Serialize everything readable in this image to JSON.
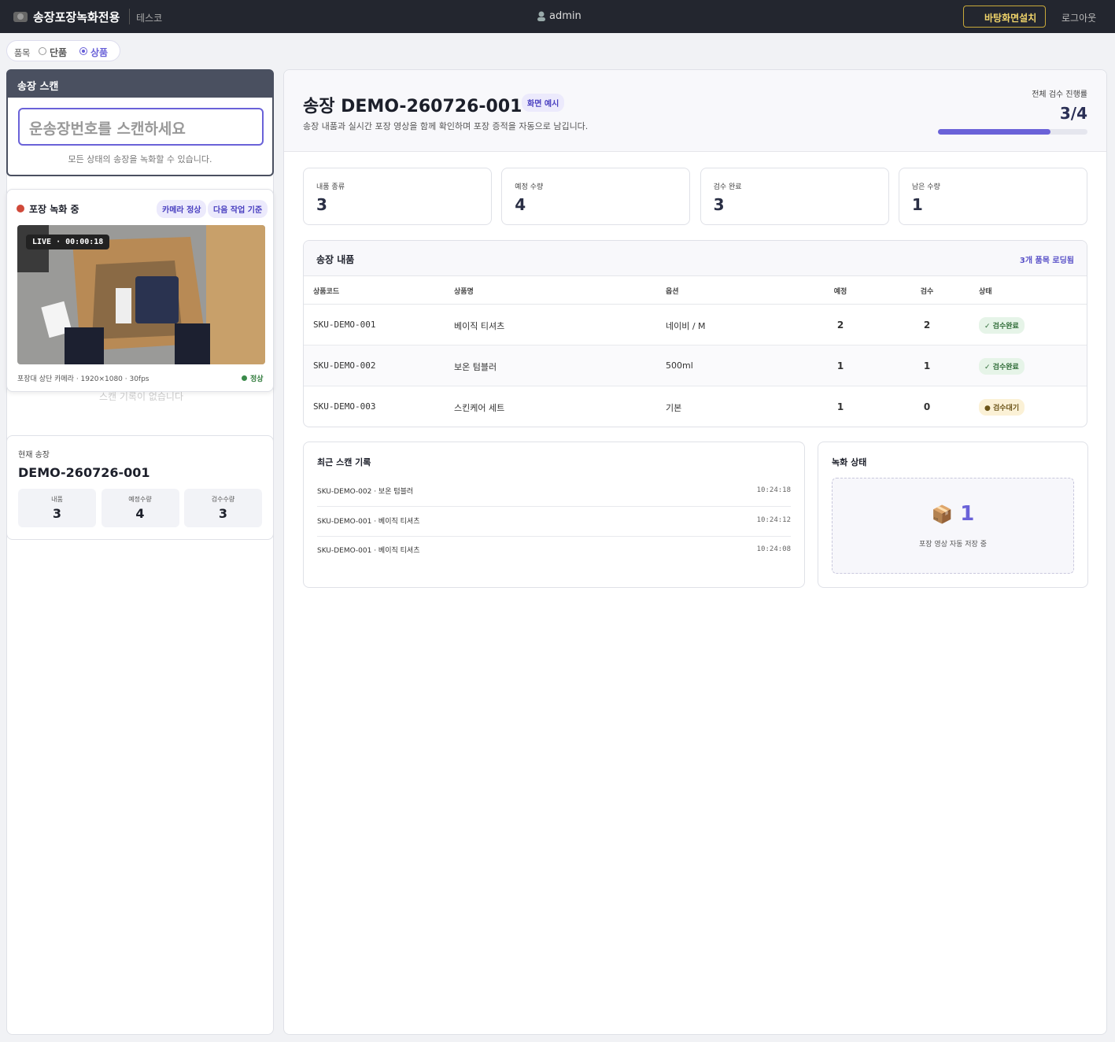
{
  "header": {
    "title": "송장포장녹화전용",
    "company": "테스코",
    "user": "admin",
    "install_button": "바탕화면설치",
    "logout": "로그아웃"
  },
  "mode": {
    "label": "품목",
    "options": [
      "단품",
      "상품"
    ],
    "selected_index": 1
  },
  "scan_panel": {
    "title": "송장 스캔",
    "placeholder": "운송장번호를  스캔하세요",
    "hint": "모든 상태의 송장을 녹화할 수 있습니다."
  },
  "recording": {
    "title": "포장 녹화 중",
    "badges": [
      "카메라 정상",
      "다음 작업 기준"
    ],
    "live": "LIVE · 00:00:18",
    "camera_info": "포장대 상단 카메라 · 1920×1080 · 30fps",
    "status": "정상",
    "empty_text": "스캔 기록이 없습니다"
  },
  "current_invoice": {
    "label": "현재 송장",
    "number": "DEMO-260726-001",
    "stats": [
      {
        "label": "내품",
        "value": 3
      },
      {
        "label": "예정수량",
        "value": 4
      },
      {
        "label": "검수수량",
        "value": 3
      }
    ]
  },
  "main": {
    "title": "송장 DEMO-260726-001",
    "tag": "화면 예시",
    "description": "송장 내품과 실시간 포장 영상을 함께 확인하며 포장 증적을 자동으로 남깁니다.",
    "progress": {
      "label": "전체 검수 진행률",
      "done": 3,
      "separator": "/",
      "total": 4
    }
  },
  "summary": [
    {
      "label": "내품 종류",
      "value": 3
    },
    {
      "label": "예정 수량",
      "value": 4
    },
    {
      "label": "검수 완료",
      "value": 3
    },
    {
      "label": "남은 수량",
      "value": 1
    }
  ],
  "table": {
    "title": "송장 내품",
    "loaded": "3개 품목 로딩됨",
    "columns": [
      "상품코드",
      "상품명",
      "옵션",
      "예정",
      "검수",
      "상태"
    ],
    "rows": [
      [
        "SKU-DEMO-001",
        "베이직 티셔츠",
        "네이비 / M",
        2,
        2,
        "✓ 검수완료"
      ],
      [
        "SKU-DEMO-002",
        "보온 텀블러",
        "500ml",
        1,
        1,
        "✓ 검수완료"
      ],
      [
        "SKU-DEMO-003",
        "스킨케어 세트",
        "기본",
        1,
        0,
        "● 검수대기"
      ]
    ]
  },
  "recent_scans": {
    "title": "최근 스캔 기록",
    "items": [
      {
        "text": "SKU-DEMO-002 · 보온 텀블러",
        "time": "10:24:18"
      },
      {
        "text": "SKU-DEMO-001 · 베이직 티셔츠",
        "time": "10:24:12"
      },
      {
        "text": "SKU-DEMO-001 · 베이직 티셔츠",
        "time": "10:24:08"
      }
    ]
  },
  "recording_status": {
    "title": "녹화 상태",
    "icon": "📦",
    "count": 1,
    "caption": "포장 영상 자동 저장 중"
  }
}
